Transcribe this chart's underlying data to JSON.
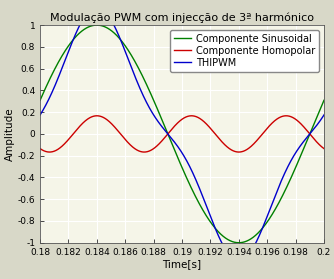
{
  "title": "Modulação PWM com injecção de 3ª harmónico",
  "xlabel": "Time[s]",
  "ylabel": "Amplitude",
  "xlim": [
    0.18,
    0.2
  ],
  "ylim": [
    -1.0,
    1.0
  ],
  "yticks": [
    -1.0,
    -0.8,
    -0.6,
    -0.4,
    -0.2,
    0.0,
    0.2,
    0.4,
    0.6,
    0.8,
    1.0
  ],
  "xticks": [
    0.18,
    0.182,
    0.184,
    0.186,
    0.188,
    0.19,
    0.192,
    0.194,
    0.196,
    0.198,
    0.2
  ],
  "frequency": 50,
  "color_thipwm": "#0000cc",
  "color_sin": "#008000",
  "color_hom": "#cc0000",
  "legend_labels": [
    "THIPWM",
    "Componente Sinusoidal",
    "Componente Homopolar"
  ],
  "background_color": "#f5f5e8",
  "fig_background_color": "#d8d8c8",
  "grid_color": "white",
  "title_fontsize": 8,
  "axis_fontsize": 7.5,
  "tick_fontsize": 6.5,
  "legend_fontsize": 7
}
